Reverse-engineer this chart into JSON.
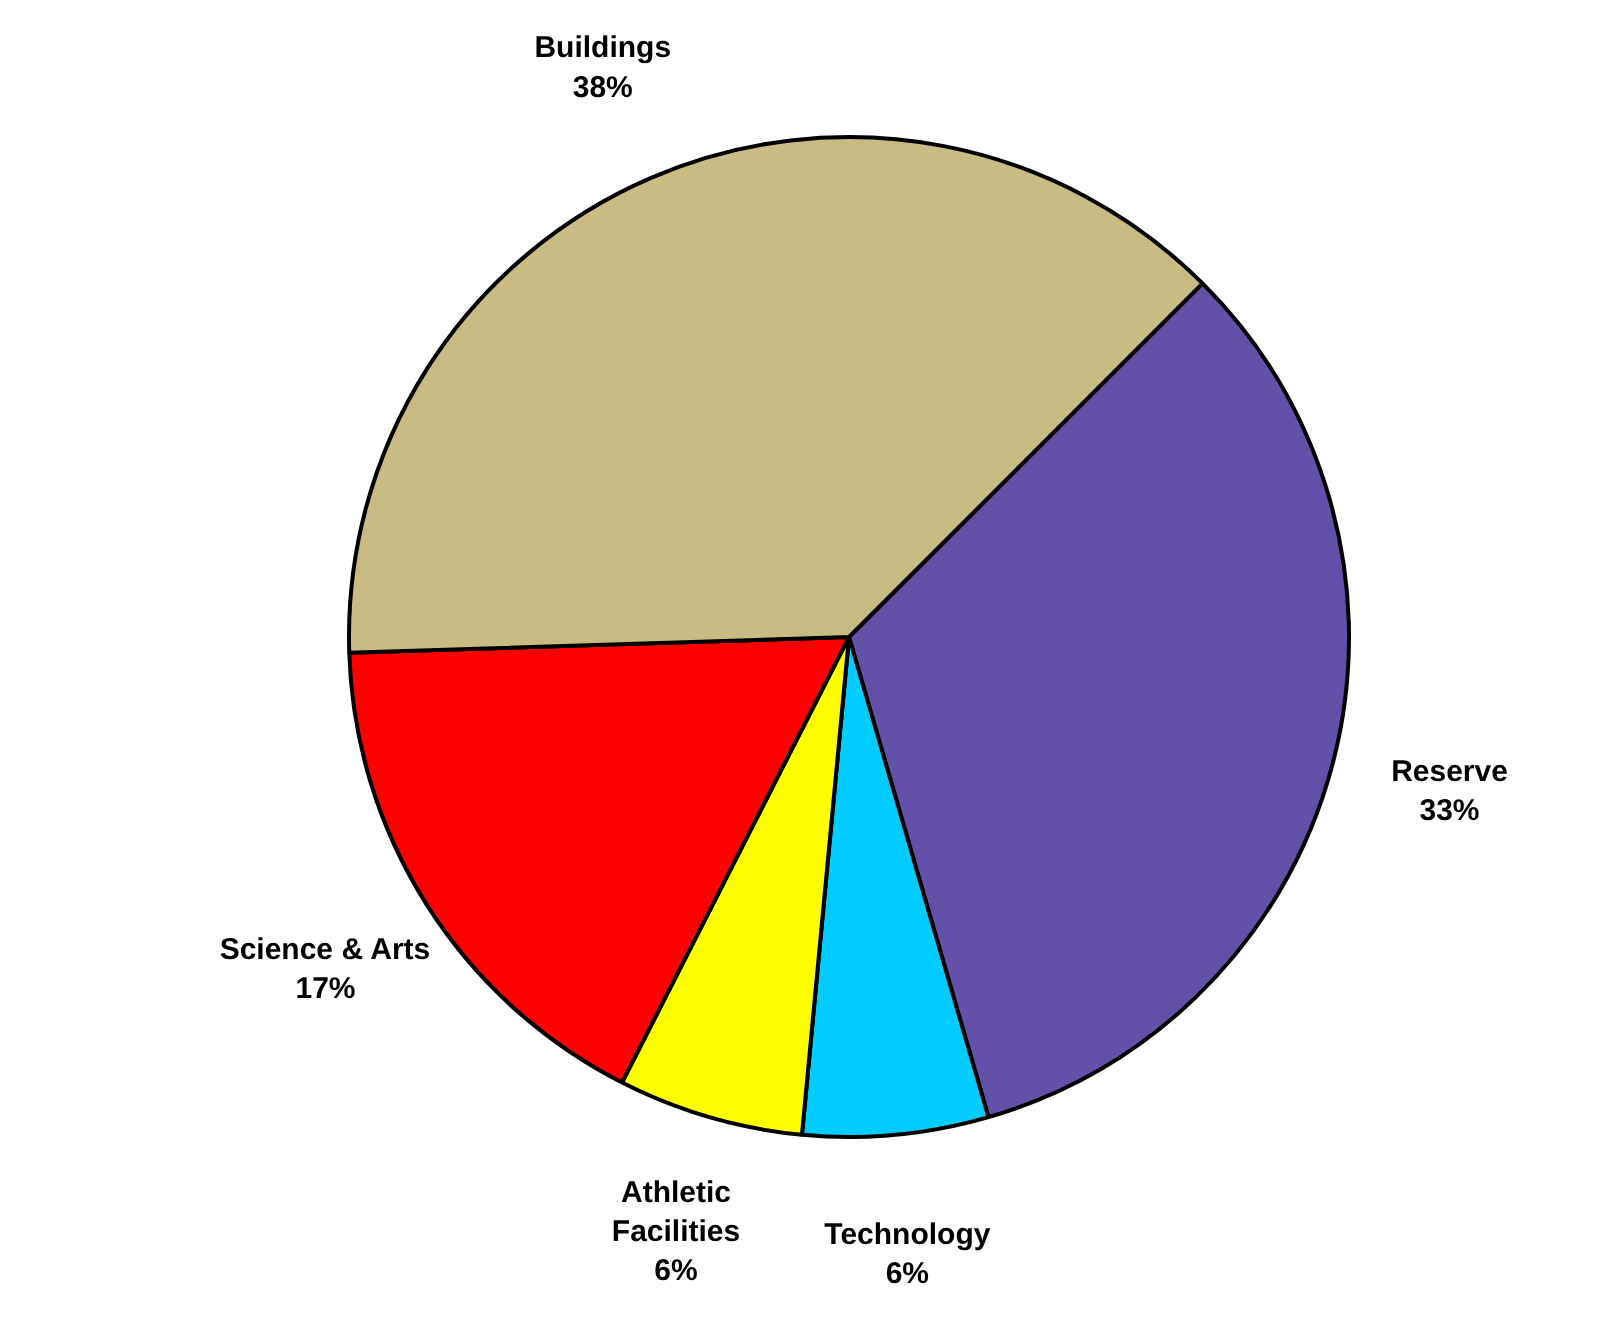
{
  "chart_data": {
    "type": "pie",
    "categories": [
      "Reserve",
      "Technology",
      "Athletic Facilities",
      "Science & Arts",
      "Buildings"
    ],
    "values": [
      33,
      6,
      6,
      17,
      38
    ],
    "colors": [
      "#6351a9",
      "#00ccff",
      "#ffff00",
      "#ff0000",
      "#c8bb84"
    ],
    "value_labels": [
      "33%",
      "6%",
      "6%",
      "17%",
      "38%"
    ]
  }
}
